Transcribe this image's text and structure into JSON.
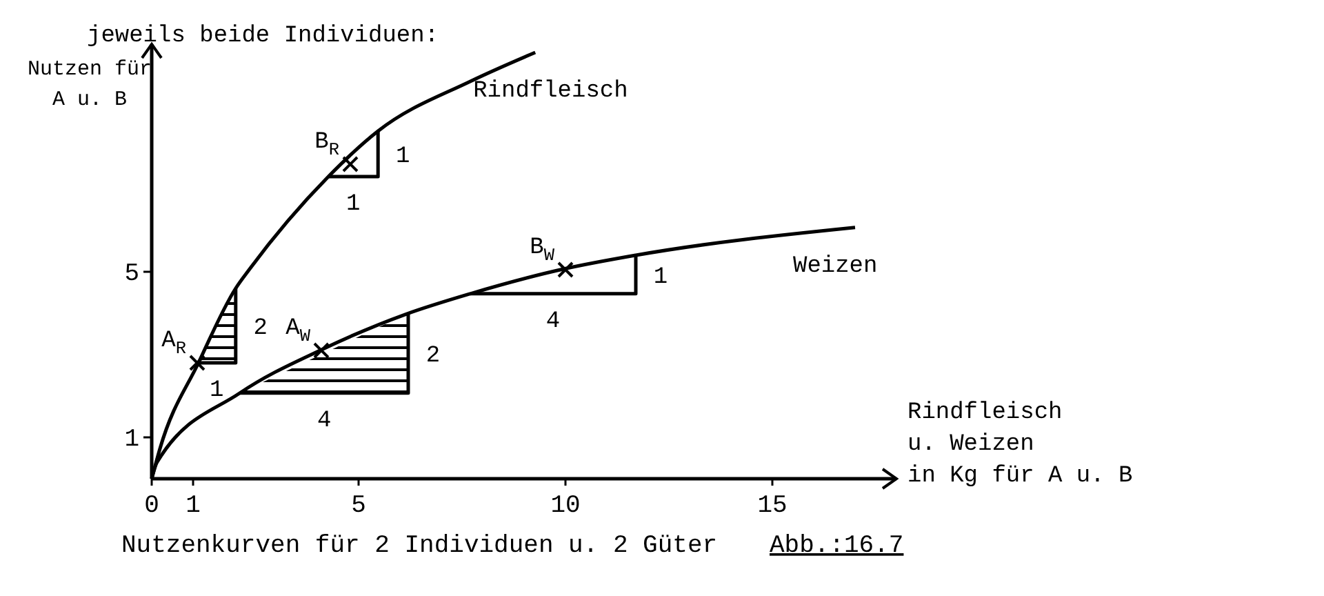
{
  "chart_data": {
    "type": "line",
    "title": "jeweils beide Individuen:",
    "xlabel": "Rindfleisch\nu. Weizen\nin Kg für A u. B",
    "ylabel": "Nutzen für\nA u. B",
    "xlim": [
      0,
      18
    ],
    "ylim": [
      0,
      10.5
    ],
    "xticks": [
      0,
      1,
      5,
      10,
      15
    ],
    "yticks": [
      1,
      5
    ],
    "grid": false,
    "series": [
      {
        "name": "Rindfleisch",
        "color": "#000000",
        "x": [
          0,
          0.2,
          1.13,
          2.03,
          2.37,
          4.27,
          5.47,
          7.7,
          9.27
        ],
        "values": [
          0,
          0.73,
          2.8,
          4.6,
          5.07,
          7.3,
          8.4,
          9.6,
          10.3
        ]
      },
      {
        "name": "Weizen",
        "color": "#000000",
        "x": [
          0,
          0.13,
          2.13,
          4.13,
          6.13,
          7.7,
          9.97,
          11.7,
          17
        ],
        "values": [
          0,
          0.4,
          2.07,
          3.13,
          3.97,
          4.47,
          5.07,
          5.4,
          6.07
        ]
      },
      {
        "type": "area",
        "color": "#000000",
        "x": [
          1.1,
          2.03,
          2.03
        ],
        "values": [
          2.8,
          2.8,
          4.6
        ]
      },
      {
        "type": "area",
        "color": "#000000",
        "x": [
          2.13,
          6.2,
          6.2
        ],
        "values": [
          2.07,
          2.07,
          4.0
        ]
      },
      {
        "color": "#000000",
        "x": [
          4.27,
          5.47,
          5.47
        ],
        "values": [
          7.3,
          7.3,
          8.4
        ]
      },
      {
        "color": "#000000",
        "x": [
          7.7,
          11.7,
          11.7
        ],
        "values": [
          4.47,
          4.47,
          5.4
        ]
      },
      {
        "type": "scatter",
        "marker": "cross",
        "color": "#000000",
        "x": [
          1.1,
          4.1,
          4.8,
          10
        ],
        "values": [
          2.8,
          3.1,
          7.6,
          5.05
        ]
      }
    ],
    "annotations": [
      {
        "text": "A$_{R}$",
        "x": 1.1,
        "y": 2.8
      },
      {
        "text": "A$_{W}$",
        "x": 4.1,
        "y": 3.1
      },
      {
        "text": "B$_{R}$",
        "x": 4.8,
        "y": 7.6
      },
      {
        "text": "B$_{W}$",
        "x": 10,
        "y": 5.05
      },
      {
        "text": "2",
        "x": 2.03,
        "y": 3.7
      },
      {
        "text": "1",
        "x": 1.57,
        "y": 2.8
      },
      {
        "text": "2",
        "x": 6.2,
        "y": 3.03
      },
      {
        "text": "4",
        "x": 4.17,
        "y": 2.07
      },
      {
        "text": "1",
        "x": 5.47,
        "y": 7.85
      },
      {
        "text": "1",
        "x": 4.87,
        "y": 7.3
      },
      {
        "text": "1",
        "x": 11.7,
        "y": 4.93
      },
      {
        "text": "4",
        "x": 9.7,
        "y": 4.47
      },
      "Nutzenkurven für 2 Individuen u. 2 Güter",
      "Abb.:16.7"
    ]
  }
}
